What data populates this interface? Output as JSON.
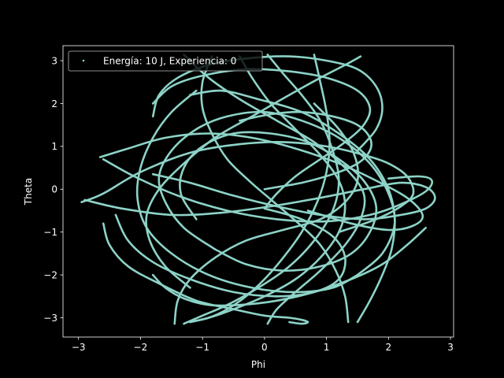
{
  "chart_data": {
    "type": "scatter",
    "title": "",
    "xlabel": "Phi",
    "ylabel": "Theta",
    "xlim": [
      -3.25,
      3.05
    ],
    "ylim": [
      -3.45,
      3.35
    ],
    "xticks": [
      -3,
      -2,
      -1,
      0,
      1,
      2,
      3
    ],
    "yticks": [
      -3,
      -2,
      -1,
      0,
      1,
      2,
      3
    ],
    "xtick_labels": [
      "−3",
      "−2",
      "−1",
      "0",
      "1",
      "2",
      "3"
    ],
    "ytick_labels": [
      "−3",
      "−2",
      "−1",
      "0",
      "1",
      "2",
      "3"
    ],
    "grid": false,
    "legend": {
      "placement": "top-left",
      "entries": [
        "Energía: 10 J, Experiencia: 0"
      ]
    },
    "colors": {
      "background": "#000000",
      "axes": "#ffffff",
      "series": "#8dd3c7"
    },
    "series": [
      {
        "name": "Energía: 10 J, Experiencia: 0",
        "curves": [
          {
            "x": [
              -2.95,
              -2.6,
              -2.0,
              -1.2,
              -0.4,
              0.3,
              1.0,
              1.6,
              2.0,
              2.3,
              2.4,
              2.2,
              1.8,
              1.2
            ],
            "y": [
              -0.3,
              -0.1,
              0.4,
              0.85,
              1.05,
              1.1,
              1.0,
              0.8,
              0.6,
              0.3,
              -0.1,
              -0.4,
              -0.7,
              -1.0
            ]
          },
          {
            "x": [
              -2.9,
              -2.3,
              -1.5,
              -0.7,
              0.1,
              0.9,
              1.6,
              2.2,
              2.6,
              2.75,
              2.6,
              2.2,
              1.6,
              0.9,
              0.2,
              -0.5,
              -1.2,
              -1.8
            ],
            "y": [
              -0.25,
              -0.45,
              -0.6,
              -0.55,
              -0.4,
              -0.2,
              0.0,
              0.15,
              0.05,
              -0.2,
              -0.45,
              -0.6,
              -0.7,
              -0.6,
              -0.4,
              -0.15,
              0.15,
              0.35
            ]
          },
          {
            "x": [
              -2.65,
              -2.2,
              -1.6,
              -0.9,
              -0.2,
              0.5,
              1.2,
              1.8,
              2.3,
              2.55,
              2.4,
              2.0,
              1.4,
              0.7
            ],
            "y": [
              0.75,
              0.95,
              1.2,
              1.3,
              1.2,
              0.95,
              0.6,
              0.2,
              -0.2,
              -0.6,
              -0.85,
              -0.95,
              -0.8,
              -0.5
            ]
          },
          {
            "x": [
              -2.6,
              -2.1,
              -1.4,
              -0.6,
              0.2,
              1.0,
              1.7,
              2.2,
              2.6,
              2.7,
              2.5,
              2.0
            ],
            "y": [
              0.7,
              0.3,
              -0.15,
              -0.5,
              -0.7,
              -0.75,
              -0.6,
              -0.35,
              -0.05,
              0.2,
              0.3,
              0.25
            ]
          },
          {
            "x": [
              -1.45,
              -1.4,
              -1.2,
              -0.8,
              -0.3,
              0.3,
              0.9,
              1.3,
              1.5,
              1.45,
              1.2,
              0.8
            ],
            "y": [
              -3.14,
              -2.6,
              -2.1,
              -1.6,
              -1.2,
              -0.95,
              -0.7,
              -0.3,
              0.2,
              0.8,
              1.4,
              2.0
            ]
          },
          {
            "x": [
              -1.3,
              -0.9,
              -0.4,
              0.2,
              0.8,
              1.3,
              1.6,
              1.55,
              1.3,
              0.9,
              0.5,
              0.2,
              0.05
            ],
            "y": [
              3.14,
              2.6,
              2.1,
              1.6,
              1.1,
              0.5,
              -0.1,
              -0.7,
              -1.3,
              -1.9,
              -2.4,
              -2.8,
              -3.14
            ]
          },
          {
            "x": [
              0.05,
              0.3,
              0.6,
              0.9,
              1.1,
              1.2,
              1.1,
              0.8,
              0.4,
              -0.1,
              -0.6,
              -1.0,
              -1.3
            ],
            "y": [
              3.14,
              2.7,
              2.2,
              1.6,
              0.9,
              0.2,
              -0.5,
              -1.2,
              -1.8,
              -2.3,
              -2.7,
              -2.95,
              -3.14
            ]
          },
          {
            "x": [
              0.8,
              0.9,
              1.0,
              1.05,
              1.0,
              0.85,
              0.6,
              0.3,
              0.0,
              -0.3,
              -0.6,
              -0.9,
              -1.2
            ],
            "y": [
              3.14,
              2.5,
              1.8,
              1.1,
              0.4,
              -0.3,
              -1.0,
              -1.6,
              -2.1,
              -2.5,
              -2.8,
              -3.0,
              -3.1
            ]
          },
          {
            "x": [
              1.55,
              1.3,
              0.9,
              0.4,
              -0.2,
              -0.8,
              -1.3,
              -1.7,
              -1.9,
              -1.85,
              -1.6,
              -1.2
            ],
            "y": [
              3.1,
              2.9,
              2.6,
              2.2,
              1.7,
              1.2,
              0.6,
              0.0,
              -0.6,
              -1.2,
              -1.8,
              -2.3
            ]
          },
          {
            "x": [
              -0.4,
              -0.2,
              0.1,
              0.5,
              0.9,
              1.2,
              1.3,
              1.2,
              0.9,
              0.5,
              0.0,
              -0.5,
              -0.9,
              -1.2
            ],
            "y": [
              3.1,
              2.6,
              2.0,
              1.4,
              0.8,
              0.2,
              -0.4,
              -1.0,
              -1.6,
              -2.1,
              -2.5,
              -2.8,
              -3.0,
              -3.1
            ]
          },
          {
            "x": [
              1.35,
              1.3,
              1.15,
              0.9,
              0.55,
              0.15,
              -0.25,
              -0.6,
              -0.85,
              -1.0,
              -1.0,
              -0.85
            ],
            "y": [
              -3.1,
              -2.5,
              -1.9,
              -1.3,
              -0.8,
              -0.3,
              0.2,
              0.7,
              1.3,
              1.9,
              2.5,
              3.1
            ]
          },
          {
            "x": [
              1.5,
              1.7,
              1.9,
              2.05,
              2.1,
              2.0,
              1.7,
              1.2,
              0.6,
              -0.1,
              -0.7,
              -1.2
            ],
            "y": [
              -3.1,
              -2.6,
              -2.0,
              -1.4,
              -0.7,
              0.0,
              0.7,
              1.3,
              1.8,
              2.1,
              2.3,
              2.2
            ]
          },
          {
            "x": [
              -1.1,
              -1.5,
              -1.8,
              -2.0,
              -2.05,
              -1.9,
              -1.5,
              -0.9,
              -0.2,
              0.5,
              1.1,
              1.5
            ],
            "y": [
              2.3,
              1.8,
              1.2,
              0.5,
              -0.2,
              -0.9,
              -1.5,
              -2.0,
              -2.3,
              -2.4,
              -2.3,
              -2.0
            ]
          },
          {
            "x": [
              1.5,
              1.9,
              2.1,
              2.0,
              1.7,
              1.2,
              0.6,
              0.0,
              -0.6,
              -1.1,
              -1.5,
              -1.7,
              -1.6,
              -1.3,
              -0.8
            ],
            "y": [
              -2.0,
              -1.5,
              -0.8,
              -0.1,
              0.6,
              1.2,
              1.6,
              1.8,
              1.7,
              1.4,
              0.9,
              0.3,
              -0.3,
              -0.9,
              -1.4
            ]
          },
          {
            "x": [
              -0.8,
              -0.3,
              0.3,
              0.9,
              1.4,
              1.7,
              1.8,
              1.6,
              1.2,
              0.7,
              0.1,
              -0.5,
              -1.0,
              -1.3,
              -1.35,
              -1.1
            ],
            "y": [
              -1.4,
              -1.75,
              -1.9,
              -1.8,
              -1.5,
              -1.0,
              -0.4,
              0.2,
              0.7,
              1.1,
              1.3,
              1.3,
              1.0,
              0.5,
              -0.1,
              -0.7
            ]
          },
          {
            "x": [
              -2.4,
              -2.2,
              -1.8,
              -1.2,
              -0.5,
              0.2,
              0.8,
              1.2,
              1.3,
              1.1,
              0.6,
              0.0
            ],
            "y": [
              -0.6,
              -1.2,
              -1.7,
              -2.1,
              -2.4,
              -2.5,
              -2.4,
              -2.1,
              -1.6,
              -1.1,
              -0.7,
              -0.45
            ]
          },
          {
            "x": [
              0.0,
              0.2,
              0.5,
              0.9,
              1.3,
              1.6,
              1.7,
              1.5,
              1.0,
              0.4,
              -0.3,
              -1.0,
              -1.5,
              -1.8
            ],
            "y": [
              -0.45,
              -0.1,
              0.3,
              0.7,
              1.1,
              1.5,
              1.9,
              2.3,
              2.6,
              2.75,
              2.8,
              2.65,
              2.4,
              2.0
            ]
          },
          {
            "x": [
              -2.6,
              -2.5,
              -2.2,
              -1.7,
              -1.1,
              -0.5,
              0.0,
              0.4,
              0.6,
              0.7,
              0.6,
              0.4
            ],
            "y": [
              -0.8,
              -1.3,
              -1.8,
              -2.2,
              -2.6,
              -2.8,
              -2.95,
              -3.0,
              -3.05,
              -3.1,
              -3.14,
              -3.1
            ]
          },
          {
            "x": [
              2.6,
              2.3,
              1.9,
              1.4,
              0.8,
              0.2,
              -0.4,
              -0.9,
              -1.3,
              -1.6,
              -1.8
            ],
            "y": [
              -0.9,
              -1.3,
              -1.75,
              -2.1,
              -2.4,
              -2.6,
              -2.7,
              -2.7,
              -2.55,
              -2.3,
              -2.0
            ]
          },
          {
            "x": [
              -1.8,
              -1.7,
              -1.4,
              -0.9,
              -0.3,
              0.4,
              1.0,
              1.5,
              1.8,
              1.9,
              1.8,
              1.5
            ],
            "y": [
              1.7,
              2.2,
              2.6,
              2.9,
              3.05,
              3.1,
              3.0,
              2.8,
              2.4,
              1.9,
              1.4,
              0.9
            ]
          },
          {
            "x": [
              0.0,
              0.2,
              0.6,
              1.1,
              1.5,
              1.7,
              1.7,
              1.5,
              1.1,
              0.6,
              0.1,
              -0.4
            ],
            "y": [
              0.0,
              0.05,
              0.15,
              0.35,
              0.6,
              0.9,
              1.2,
              1.5,
              1.7,
              1.8,
              1.75,
              1.6
            ]
          }
        ]
      }
    ]
  }
}
